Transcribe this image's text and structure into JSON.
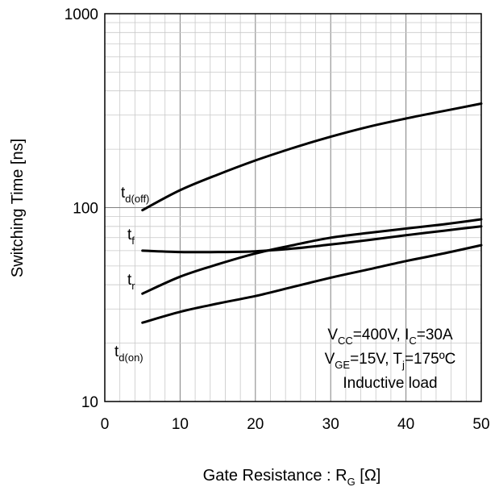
{
  "chart_data": {
    "type": "line",
    "xlabel": {
      "main": "Gate Resistance : R",
      "sub": "G",
      "unit": " [Ω]"
    },
    "ylabel": "Switching Time [ns]",
    "xlim": [
      0,
      50
    ],
    "ylim": [
      10,
      1000
    ],
    "yscale": "log",
    "grid": true,
    "x_ticks": [
      "0",
      "10",
      "20",
      "30",
      "40",
      "50"
    ],
    "y_ticks": [
      "10",
      "100",
      "1000"
    ],
    "series": [
      {
        "name": "td(off)",
        "label_main": "t",
        "label_sub": "d(off)",
        "x": [
          5,
          10,
          15,
          20,
          25,
          30,
          35,
          40,
          45,
          50
        ],
        "y": [
          97,
          123,
          148,
          175,
          203,
          232,
          261,
          288,
          315,
          344
        ]
      },
      {
        "name": "tf",
        "label_main": "t",
        "label_sub": "f",
        "x": [
          5,
          10,
          15,
          20,
          25,
          30,
          35,
          40,
          45,
          50
        ],
        "y": [
          60,
          59,
          59,
          59.5,
          61.5,
          64.5,
          68,
          72,
          76,
          80
        ]
      },
      {
        "name": "tr",
        "label_main": "t",
        "label_sub": "r",
        "x": [
          5,
          10,
          15,
          20,
          25,
          30,
          35,
          40,
          45,
          50
        ],
        "y": [
          36,
          44,
          51,
          58,
          64,
          70,
          74,
          78,
          82,
          87
        ]
      },
      {
        "name": "td(on)",
        "label_main": "t",
        "label_sub": "d(on)",
        "x": [
          5,
          10,
          15,
          20,
          25,
          30,
          35,
          40,
          45,
          50
        ],
        "y": [
          25.5,
          29,
          32,
          35,
          39,
          43.5,
          48,
          53,
          58,
          64
        ]
      }
    ],
    "annotation": [
      {
        "parts": [
          {
            "t": "V"
          },
          {
            "t": "CC",
            "sub": true
          },
          {
            "t": "=400V, I"
          },
          {
            "t": "C",
            "sub": true
          },
          {
            "t": "=30A"
          }
        ]
      },
      {
        "parts": [
          {
            "t": "V"
          },
          {
            "t": "GE",
            "sub": true
          },
          {
            "t": "=15V, T"
          },
          {
            "t": "j",
            "sub": true
          },
          {
            "t": "=175ºC"
          }
        ]
      },
      {
        "parts": [
          {
            "t": "Inductive load"
          }
        ]
      }
    ]
  }
}
